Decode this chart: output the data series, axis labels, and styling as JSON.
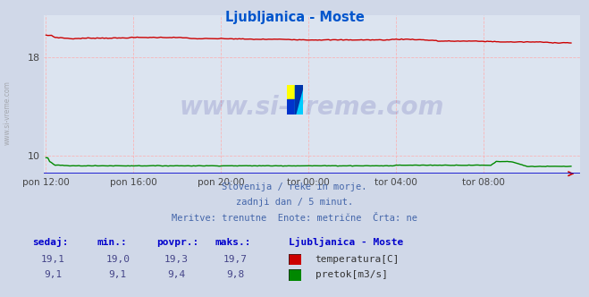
{
  "title": "Ljubljanica - Moste",
  "title_color": "#0055cc",
  "bg_color": "#d0d8e8",
  "plot_bg_color": "#dce4f0",
  "grid_color": "#ffaaaa",
  "xmin": 0,
  "xmax": 288,
  "ymin": 8.5,
  "ymax": 21.5,
  "yticks": [
    10,
    18
  ],
  "xtick_labels": [
    "pon 12:00",
    "pon 16:00",
    "pon 20:00",
    "tor 00:00",
    "tor 04:00",
    "tor 08:00"
  ],
  "xtick_positions": [
    0,
    48,
    96,
    144,
    192,
    240
  ],
  "temp_color": "#cc0000",
  "flow_color": "#008800",
  "watermark_text": "www.si-vreme.com",
  "watermark_color": "#1a1a8c",
  "watermark_alpha": 0.15,
  "subtitle_lines": [
    "Slovenija / reke in morje.",
    "zadnji dan / 5 minut.",
    "Meritve: trenutne  Enote: metrične  Črta: ne"
  ],
  "subtitle_color": "#4466aa",
  "table_header": [
    "sedaj:",
    "min.:",
    "povpr.:",
    "maks.:",
    "Ljubljanica - Moste"
  ],
  "table_color": "#0000cc",
  "table_data": [
    [
      "19,1",
      "19,0",
      "19,3",
      "19,7"
    ],
    [
      "9,1",
      "9,1",
      "9,4",
      "9,8"
    ]
  ],
  "legend_labels": [
    "temperatura[C]",
    "pretok[m3/s]"
  ],
  "legend_colors": [
    "#cc0000",
    "#008800"
  ],
  "axis_line_color": "#0000cc",
  "arrow_color": "#cc0000",
  "side_label_color": "#888888",
  "tick_color": "#444444"
}
